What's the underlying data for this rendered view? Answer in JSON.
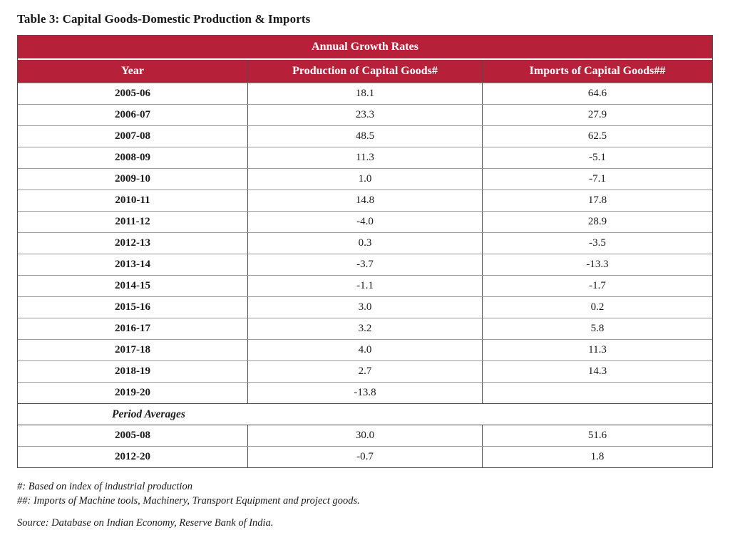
{
  "page": {
    "title": "Table 3: Capital Goods-Domestic Production & Imports"
  },
  "table": {
    "banner": "Annual Growth Rates",
    "columns": [
      "Year",
      "Production of Capital Goods#",
      "Imports of Capital Goods##"
    ],
    "rows": [
      {
        "year": "2005-06",
        "production": "18.1",
        "imports": "64.6"
      },
      {
        "year": "2006-07",
        "production": "23.3",
        "imports": "27.9"
      },
      {
        "year": "2007-08",
        "production": "48.5",
        "imports": "62.5"
      },
      {
        "year": "2008-09",
        "production": "11.3",
        "imports": "-5.1"
      },
      {
        "year": "2009-10",
        "production": "1.0",
        "imports": "-7.1"
      },
      {
        "year": "2010-11",
        "production": "14.8",
        "imports": "17.8"
      },
      {
        "year": "2011-12",
        "production": "-4.0",
        "imports": "28.9"
      },
      {
        "year": "2012-13",
        "production": "0.3",
        "imports": "-3.5"
      },
      {
        "year": "2013-14",
        "production": "-3.7",
        "imports": "-13.3"
      },
      {
        "year": "2014-15",
        "production": "-1.1",
        "imports": "-1.7"
      },
      {
        "year": "2015-16",
        "production": "3.0",
        "imports": "0.2"
      },
      {
        "year": "2016-17",
        "production": "3.2",
        "imports": "5.8"
      },
      {
        "year": "2017-18",
        "production": "4.0",
        "imports": "11.3"
      },
      {
        "year": "2018-19",
        "production": "2.7",
        "imports": "14.3"
      },
      {
        "year": "2019-20",
        "production": "-13.8",
        "imports": ""
      }
    ],
    "section_label": "Period Averages",
    "average_rows": [
      {
        "year": "2005-08",
        "production": "30.0",
        "imports": "51.6"
      },
      {
        "year": "2012-20",
        "production": "-0.7",
        "imports": "1.8"
      }
    ]
  },
  "footnotes": {
    "note1": "#: Based on index of industrial production",
    "note2": "##: Imports of Machine tools, Machinery, Transport Equipment and project goods.",
    "source": "Source: Database on Indian Economy, Reserve Bank of India."
  },
  "colors": {
    "header_red": "#B62139",
    "header_text": "#FFFFFF",
    "border_dark": "#4D4D4D",
    "border_light": "#9B9B9B",
    "text": "#1A1A1A"
  }
}
